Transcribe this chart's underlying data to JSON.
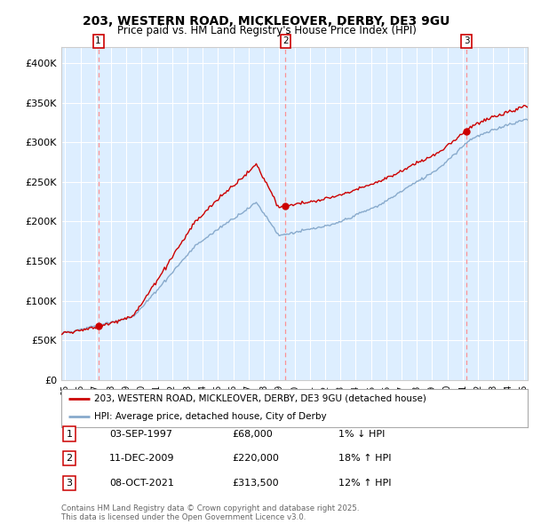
{
  "title_line1": "203, WESTERN ROAD, MICKLEOVER, DERBY, DE3 9GU",
  "title_line2": "Price paid vs. HM Land Registry's House Price Index (HPI)",
  "background_color": "#ffffff",
  "plot_background_color": "#ddeeff",
  "grid_color": "#ffffff",
  "house_color": "#cc0000",
  "hpi_color": "#88aacc",
  "ylim": [
    0,
    420000
  ],
  "yticks": [
    0,
    50000,
    100000,
    150000,
    200000,
    250000,
    300000,
    350000,
    400000
  ],
  "ytick_labels": [
    "£0",
    "£50K",
    "£100K",
    "£150K",
    "£200K",
    "£250K",
    "£300K",
    "£350K",
    "£400K"
  ],
  "sale_prices": [
    68000,
    220000,
    313500
  ],
  "sale_labels": [
    "1",
    "2",
    "3"
  ],
  "sale_pct": [
    "1% ↓ HPI",
    "18% ↑ HPI",
    "12% ↑ HPI"
  ],
  "sale_date_strs": [
    "03-SEP-1997",
    "11-DEC-2009",
    "08-OCT-2021"
  ],
  "sale_price_strs": [
    "£68,000",
    "£220,000",
    "£313,500"
  ],
  "legend_house": "203, WESTERN ROAD, MICKLEOVER, DERBY, DE3 9GU (detached house)",
  "legend_hpi": "HPI: Average price, detached house, City of Derby",
  "footer": "Contains HM Land Registry data © Crown copyright and database right 2025.\nThis data is licensed under the Open Government Licence v3.0."
}
